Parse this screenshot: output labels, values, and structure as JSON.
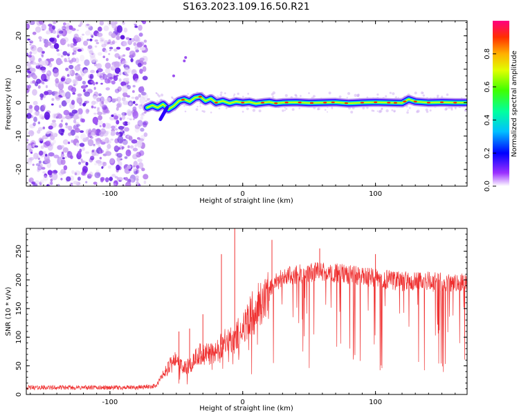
{
  "chart_data": [
    {
      "type": "heatmap",
      "title": "S163.2023.109.16.50.R21",
      "xlabel": "Height of straight line (km)",
      "ylabel": "Frequency (Hz)",
      "xlim": [
        -163,
        169
      ],
      "ylim": [
        -25,
        24.5
      ],
      "x_ticks": [
        -100,
        0,
        100
      ],
      "y_ticks": [
        -20,
        -10,
        0,
        10,
        20
      ],
      "colorbar": {
        "label": "Normalized spectral amplitude",
        "range": [
          0,
          1
        ],
        "ticks": [
          "0.0",
          "0.2",
          "0.4",
          "0.6",
          "0.8"
        ]
      },
      "signal": {
        "noise_region_x": [
          -163,
          -73
        ],
        "onset_x": -73,
        "center_frequency": 0,
        "ridge_points": [
          {
            "x": -72,
            "y": -1.5
          },
          {
            "x": -68,
            "y": -0.8
          },
          {
            "x": -64,
            "y": -1.5
          },
          {
            "x": -60,
            "y": -0.5
          },
          {
            "x": -56,
            "y": -2.0
          },
          {
            "x": -52,
            "y": -1.0
          },
          {
            "x": -48,
            "y": 0.5
          },
          {
            "x": -44,
            "y": 1.0
          },
          {
            "x": -40,
            "y": 0.3
          },
          {
            "x": -36,
            "y": 1.5
          },
          {
            "x": -32,
            "y": 1.8
          },
          {
            "x": -28,
            "y": 0.5
          },
          {
            "x": -24,
            "y": 1.2
          },
          {
            "x": -20,
            "y": 0.0
          },
          {
            "x": -15,
            "y": 0.5
          },
          {
            "x": -10,
            "y": -0.2
          },
          {
            "x": -5,
            "y": 0.3
          },
          {
            "x": 0,
            "y": 0.0
          },
          {
            "x": 5,
            "y": 0.2
          },
          {
            "x": 10,
            "y": -0.3
          },
          {
            "x": 15,
            "y": 0.0
          },
          {
            "x": 20,
            "y": 0.2
          },
          {
            "x": 25,
            "y": -0.2
          },
          {
            "x": 30,
            "y": 0.0
          },
          {
            "x": 40,
            "y": 0.1
          },
          {
            "x": 50,
            "y": -0.1
          },
          {
            "x": 60,
            "y": 0.0
          },
          {
            "x": 70,
            "y": 0.1
          },
          {
            "x": 80,
            "y": -0.2
          },
          {
            "x": 90,
            "y": 0.0
          },
          {
            "x": 100,
            "y": 0.1
          },
          {
            "x": 110,
            "y": 0.0
          },
          {
            "x": 120,
            "y": -0.1
          },
          {
            "x": 125,
            "y": 1.0
          },
          {
            "x": 130,
            "y": 0.3
          },
          {
            "x": 140,
            "y": 0.0
          },
          {
            "x": 150,
            "y": 0.1
          },
          {
            "x": 160,
            "y": 0.0
          },
          {
            "x": 169,
            "y": 0.0
          }
        ],
        "peak_points_x": [
          -45,
          -32,
          -20,
          0,
          15,
          25,
          33,
          43,
          52,
          62,
          68,
          78,
          90,
          100,
          110,
          115,
          122,
          130,
          140,
          150,
          160
        ]
      }
    },
    {
      "type": "line",
      "title": "",
      "xlabel": "Height of straight line (km)",
      "ylabel": "SNR (10 * v/v)",
      "xlim": [
        -163,
        169
      ],
      "ylim": [
        0,
        290
      ],
      "x_ticks": [
        -100,
        0,
        100
      ],
      "y_ticks": [
        0,
        50,
        100,
        150,
        200,
        250
      ],
      "series": [
        {
          "name": "SNR",
          "color": "#ef3030",
          "envelope": [
            {
              "x": -163,
              "y": 12
            },
            {
              "x": -120,
              "y": 12
            },
            {
              "x": -80,
              "y": 12
            },
            {
              "x": -65,
              "y": 15
            },
            {
              "x": -60,
              "y": 35
            },
            {
              "x": -55,
              "y": 50
            },
            {
              "x": -50,
              "y": 60
            },
            {
              "x": -45,
              "y": 45
            },
            {
              "x": -40,
              "y": 50
            },
            {
              "x": -35,
              "y": 65
            },
            {
              "x": -30,
              "y": 75
            },
            {
              "x": -25,
              "y": 70
            },
            {
              "x": -20,
              "y": 75
            },
            {
              "x": -15,
              "y": 90
            },
            {
              "x": -10,
              "y": 90
            },
            {
              "x": -5,
              "y": 100
            },
            {
              "x": 0,
              "y": 115
            },
            {
              "x": 5,
              "y": 135
            },
            {
              "x": 10,
              "y": 150
            },
            {
              "x": 15,
              "y": 165
            },
            {
              "x": 20,
              "y": 180
            },
            {
              "x": 25,
              "y": 195
            },
            {
              "x": 30,
              "y": 205
            },
            {
              "x": 40,
              "y": 210
            },
            {
              "x": 50,
              "y": 212
            },
            {
              "x": 60,
              "y": 215
            },
            {
              "x": 70,
              "y": 212
            },
            {
              "x": 80,
              "y": 210
            },
            {
              "x": 90,
              "y": 205
            },
            {
              "x": 100,
              "y": 203
            },
            {
              "x": 110,
              "y": 200
            },
            {
              "x": 120,
              "y": 198
            },
            {
              "x": 130,
              "y": 198
            },
            {
              "x": 140,
              "y": 197
            },
            {
              "x": 150,
              "y": 196
            },
            {
              "x": 160,
              "y": 196
            },
            {
              "x": 169,
              "y": 196
            }
          ],
          "spikes": [
            {
              "x": -48,
              "y": 110
            },
            {
              "x": -40,
              "y": 115
            },
            {
              "x": -30,
              "y": 140
            },
            {
              "x": -16,
              "y": 245
            },
            {
              "x": -6,
              "y": 290
            },
            {
              "x": 22,
              "y": 270
            },
            {
              "x": 58,
              "y": 255
            },
            {
              "x": 100,
              "y": 245
            }
          ]
        }
      ]
    }
  ]
}
